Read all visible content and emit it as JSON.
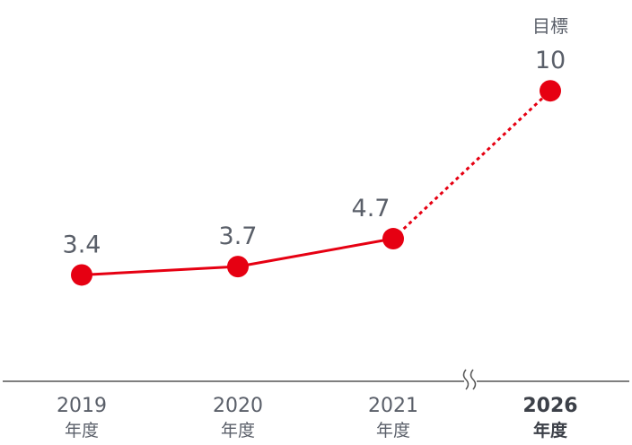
{
  "chart_data": {
    "type": "line",
    "categories": [
      "2019",
      "2020",
      "2021",
      "2026"
    ],
    "category_unit": "年度",
    "values": [
      3.4,
      3.7,
      4.7,
      10
    ],
    "value_labels": [
      "3.4",
      "3.7",
      "4.7",
      "10"
    ],
    "target_label": "目標",
    "target_index": 3,
    "projection_style": "dotted",
    "axis_break_between": [
      2,
      3
    ],
    "title": "",
    "xlabel": "",
    "ylabel": "",
    "ylim": [
      0,
      10.5
    ],
    "grid": false,
    "colors": {
      "series": "#e60012",
      "text": "#5a5f69",
      "axis": "#555555"
    }
  }
}
